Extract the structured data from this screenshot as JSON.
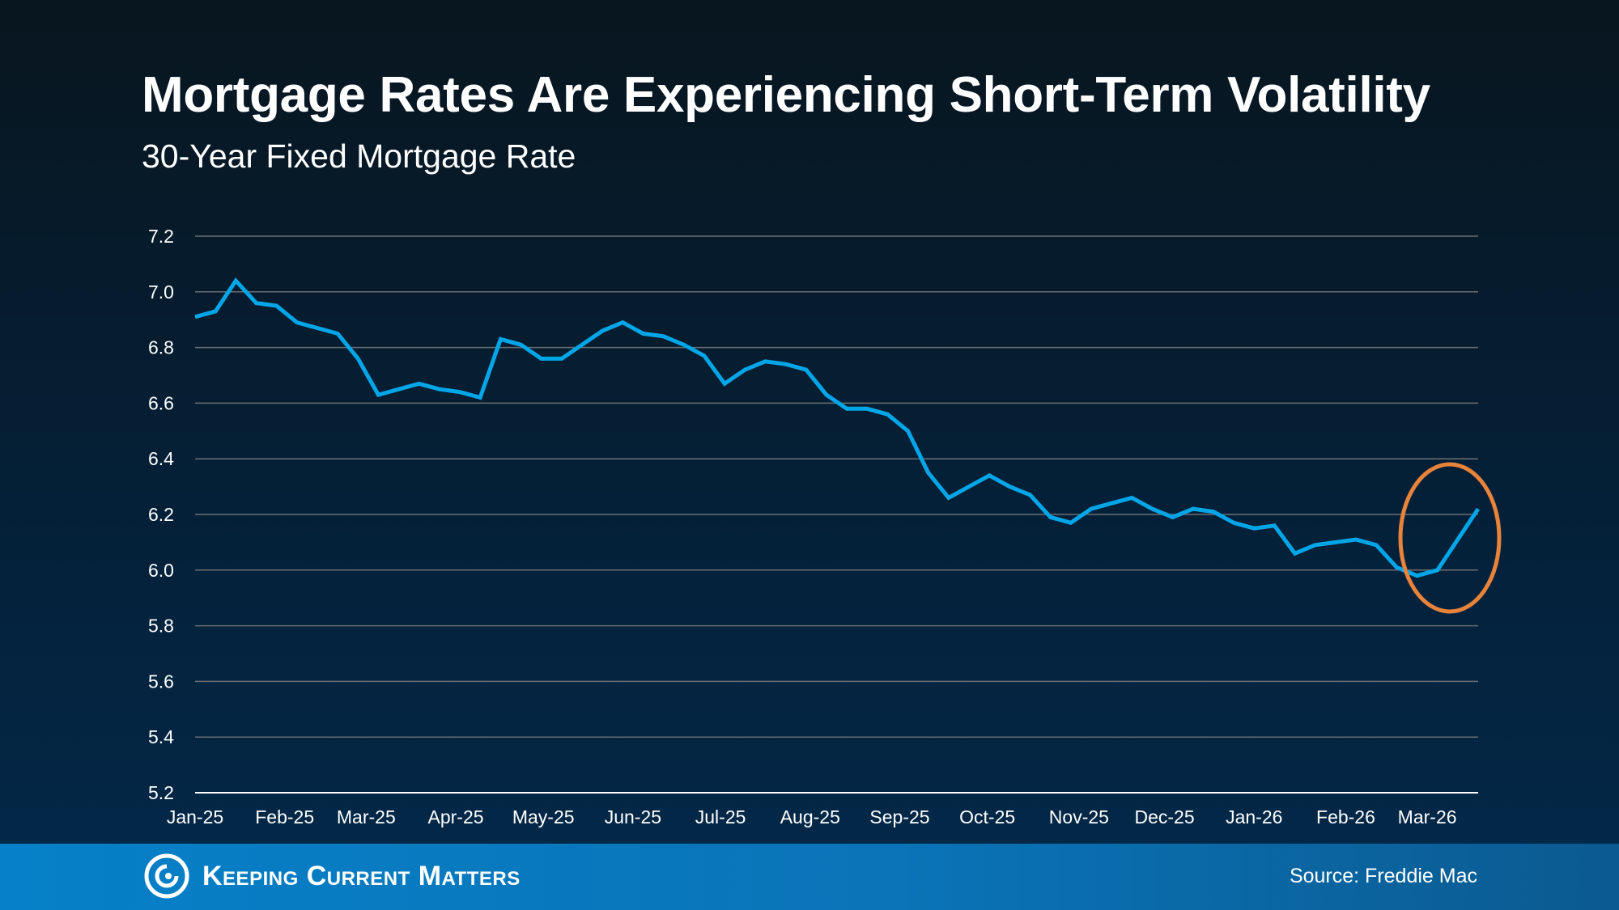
{
  "chart_data": {
    "type": "line",
    "title": "Mortgage Rates Are Experiencing Short-Term Volatility",
    "subtitle": "30-Year Fixed Mortgage Rate",
    "xlabel": "",
    "ylabel": "",
    "ylim": [
      5.2,
      7.2
    ],
    "yticks": [
      "7.2",
      "7.0",
      "6.8",
      "6.6",
      "6.4",
      "6.2",
      "6.0",
      "5.8",
      "5.6",
      "5.4",
      "5.2"
    ],
    "xticks": [
      "Jan-25",
      "Feb-25",
      "Mar-25",
      "Apr-25",
      "May-25",
      "Jun-25",
      "Jul-25",
      "Aug-25",
      "Sep-25",
      "Oct-25",
      "Nov-25",
      "Dec-25",
      "Jan-26",
      "Feb-26",
      "Mar-26"
    ],
    "grid": true,
    "line_color": "#00a6e8",
    "highlight_color": "#e8833a",
    "highlight": "last three weeks circled (Mar-26 rise)",
    "values": [
      6.91,
      6.93,
      7.04,
      6.96,
      6.95,
      6.89,
      6.87,
      6.85,
      6.76,
      6.63,
      6.65,
      6.67,
      6.65,
      6.64,
      6.62,
      6.83,
      6.81,
      6.76,
      6.76,
      6.81,
      6.86,
      6.89,
      6.85,
      6.84,
      6.81,
      6.77,
      6.67,
      6.72,
      6.75,
      6.74,
      6.72,
      6.63,
      6.58,
      6.58,
      6.56,
      6.5,
      6.35,
      6.26,
      6.3,
      6.34,
      6.3,
      6.27,
      6.19,
      6.17,
      6.22,
      6.24,
      6.26,
      6.22,
      6.19,
      6.22,
      6.21,
      6.17,
      6.15,
      6.16,
      6.06,
      6.09,
      6.1,
      6.11,
      6.09,
      6.01,
      5.98,
      6.0,
      6.11,
      6.22
    ]
  },
  "footer": {
    "brand": "Keeping Current Matters",
    "source": "Source: Freddie Mac"
  }
}
